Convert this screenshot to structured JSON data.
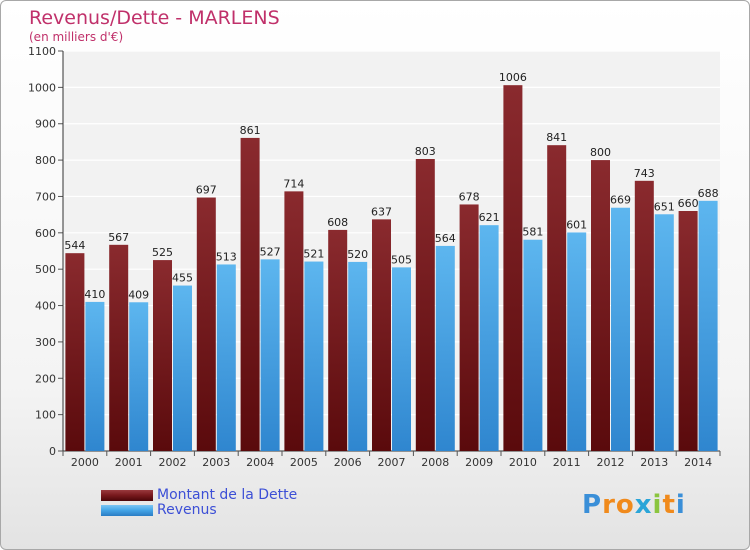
{
  "title": "Revenus/Dette - MARLENS",
  "subtitle": "(en milliers d'€)",
  "brand": "Proxiti",
  "colors": {
    "dette": "#7a1a1e",
    "revenus": "#46a7e8",
    "title": "#c0306a",
    "legend_text": "#3c4fd6"
  },
  "chart_data": {
    "type": "bar",
    "categories": [
      "2000",
      "2001",
      "2002",
      "2003",
      "2004",
      "2005",
      "2006",
      "2007",
      "2008",
      "2009",
      "2010",
      "2011",
      "2012",
      "2013",
      "2014"
    ],
    "series": [
      {
        "name": "Montant de la Dette",
        "values": [
          544,
          567,
          525,
          697,
          861,
          714,
          608,
          637,
          803,
          678,
          1006,
          841,
          800,
          743,
          660
        ]
      },
      {
        "name": "Revenus",
        "values": [
          410,
          409,
          455,
          513,
          527,
          521,
          520,
          505,
          564,
          621,
          581,
          601,
          669,
          651,
          688
        ]
      }
    ],
    "ylim": [
      0,
      1100
    ],
    "yticks": [
      0,
      100,
      200,
      300,
      400,
      500,
      600,
      700,
      800,
      900,
      1000,
      1100
    ],
    "grid": true,
    "legend": "bottom-left"
  }
}
